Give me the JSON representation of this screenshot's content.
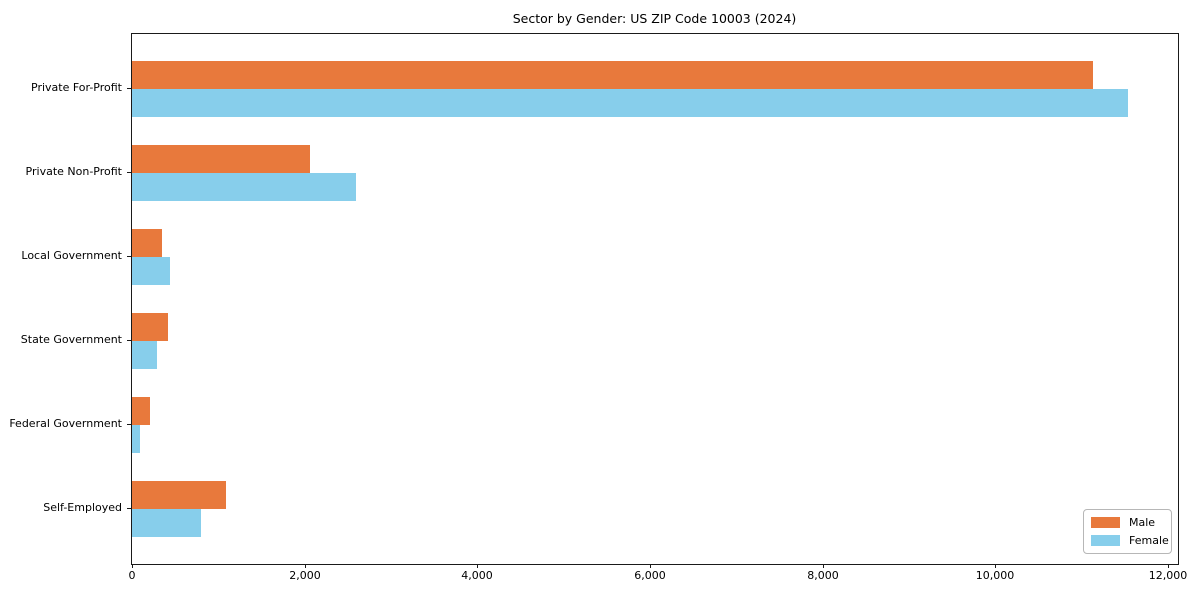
{
  "chart_data": {
    "type": "bar",
    "orientation": "horizontal",
    "title": "Sector by Gender: US ZIP Code 10003 (2024)",
    "categories": [
      "Private For-Profit",
      "Private Non-Profit",
      "Local Government",
      "State Government",
      "Federal Government",
      "Self-Employed"
    ],
    "series": [
      {
        "name": "Male",
        "color": "#e8793c",
        "values": [
          11130,
          2060,
          350,
          420,
          210,
          1090
        ]
      },
      {
        "name": "Female",
        "color": "#87ceeb",
        "values": [
          11540,
          2590,
          440,
          290,
          95,
          800
        ]
      }
    ],
    "xlabel": "",
    "ylabel": "",
    "xlim": [
      0,
      12116
    ],
    "x_ticks": {
      "values": [
        0,
        2000,
        4000,
        6000,
        8000,
        10000,
        12000
      ],
      "labels": [
        "0",
        "2,000",
        "4,000",
        "6,000",
        "8,000",
        "10,000",
        "12,000"
      ]
    },
    "grid": false,
    "legend_position": "lower right",
    "background_color": "#ffffff",
    "spine_color": "#1a1a1a"
  }
}
